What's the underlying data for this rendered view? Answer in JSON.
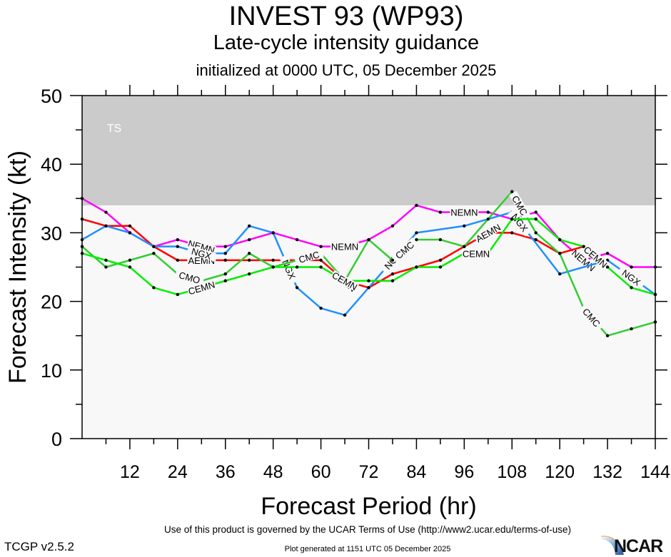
{
  "header": {
    "title": "INVEST 93 (WP93)",
    "subtitle": "Late-cycle intensity guidance",
    "initialized": "initialized at 0000 UTC, 05 December 2025"
  },
  "footer": {
    "terms": "Use of this product is governed by the UCAR Terms of Use (http://www2.ucar.edu/terms-of-use)",
    "version": "TCGP v2.5.2",
    "generated": "Plot generated at 1151 UTC   05 December 2025",
    "logo_text": "NCAR"
  },
  "chart_data": {
    "type": "line",
    "title": "INVEST 93 (WP93)",
    "xlabel": "Forecast Period (hr)",
    "ylabel": "Forecast Intensity (kt)",
    "xlim": [
      0,
      144
    ],
    "ylim": [
      0,
      50
    ],
    "xticks": [
      12,
      24,
      36,
      48,
      60,
      72,
      84,
      96,
      108,
      120,
      132,
      144
    ],
    "yticks": [
      0,
      10,
      20,
      30,
      40,
      50
    ],
    "bands": [
      {
        "label": "TS",
        "from": 34,
        "to": 50,
        "color": "#cbcbcb"
      }
    ],
    "below_band_color": "#f8f8f8",
    "series": [
      {
        "name": "NEMN",
        "color": "#ff00ff",
        "x": [
          0,
          6,
          12,
          18,
          24,
          30,
          36,
          42,
          48,
          54,
          60,
          66,
          72,
          78,
          84,
          90,
          96,
          102,
          108,
          114,
          120,
          126,
          132,
          138,
          144
        ],
        "y": [
          35,
          33,
          30,
          28,
          29,
          28,
          28,
          29,
          30,
          29,
          28,
          28,
          29,
          31,
          34,
          33,
          33,
          33,
          32,
          33,
          29,
          26,
          27,
          25,
          25
        ],
        "labels_at": [
          30,
          66,
          96,
          126
        ]
      },
      {
        "name": "AEMN",
        "color": "#ff0000",
        "x": [
          0,
          6,
          12,
          18,
          24,
          30,
          36,
          42,
          48,
          54,
          60,
          66,
          72,
          78,
          84,
          90,
          96,
          102,
          108,
          114,
          120,
          126
        ],
        "y": [
          32,
          31,
          31,
          28,
          26,
          26,
          26,
          26,
          26,
          26,
          26,
          23,
          22,
          24,
          25,
          26,
          28,
          30,
          30,
          29,
          27,
          28
        ],
        "labels_at": [
          30,
          66,
          102,
          129
        ]
      },
      {
        "name": "NGX",
        "color": "#1e90ff",
        "x": [
          0,
          6,
          12,
          18,
          24,
          30,
          36,
          42,
          48,
          54,
          60,
          66,
          72,
          78,
          84,
          96,
          108,
          120,
          132,
          144
        ],
        "y": [
          29,
          31,
          30,
          28,
          28,
          27,
          27,
          31,
          30,
          22,
          19,
          18,
          22,
          26,
          30,
          31,
          33,
          24,
          26,
          21
        ],
        "labels_at": [
          30,
          52,
          78,
          110,
          138
        ]
      },
      {
        "name": "CMO",
        "color": "#32cd32",
        "x": [
          0,
          6,
          12,
          18,
          24,
          30,
          36,
          42,
          48,
          54
        ],
        "y": [
          28,
          25,
          26,
          27,
          24,
          23,
          24,
          27,
          25,
          26
        ],
        "labels_at": [
          27
        ]
      },
      {
        "name": "CMC",
        "color": "#32cd32",
        "x": [
          54,
          60,
          66,
          72,
          78,
          84,
          90,
          96,
          102,
          108,
          114,
          120,
          126,
          132,
          138,
          144
        ],
        "y": [
          26,
          27,
          23,
          29,
          26,
          29,
          29,
          28,
          32,
          36,
          30,
          27,
          19,
          15,
          16,
          17
        ],
        "labels_at": [
          57,
          81,
          110,
          128
        ]
      },
      {
        "name": "CEMN",
        "color": "#00ee00",
        "x": [
          0,
          6,
          12,
          18,
          24,
          30,
          36,
          42,
          48,
          54,
          60,
          66,
          72,
          78,
          84,
          90,
          96,
          102,
          108,
          114,
          120,
          126,
          132,
          138,
          144
        ],
        "y": [
          27,
          26,
          25,
          22,
          21,
          22,
          23,
          24,
          25,
          25,
          25,
          23,
          23,
          23,
          25,
          25,
          27,
          27,
          32,
          32,
          29,
          28,
          25,
          22,
          21
        ],
        "labels_at": [
          30,
          66,
          99,
          129
        ]
      }
    ]
  }
}
